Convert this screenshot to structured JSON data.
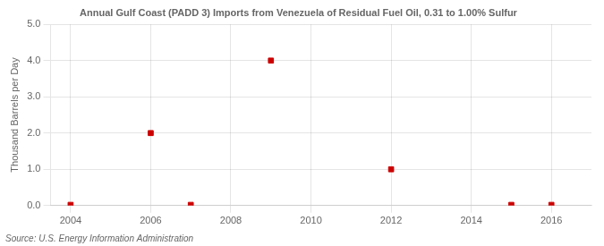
{
  "chart_data": {
    "type": "scatter",
    "title": "Annual Gulf Coast (PADD 3) Imports from Venezuela of Residual Fuel Oil, 0.31 to 1.00% Sulfur",
    "y_label": "Thousand Barrels per Day",
    "annotations": [
      "Source: U.S. Energy Information Administration"
    ],
    "x": [
      2004,
      2006,
      2007,
      2009,
      2012,
      2015,
      2016
    ],
    "values": [
      0.02,
      2.0,
      0.02,
      4.0,
      1.0,
      0.02,
      0.02
    ],
    "color": "#cc0000",
    "marker": "square",
    "xlim": [
      2003.5,
      2017.0
    ],
    "xticks": [
      2004,
      2006,
      2008,
      2010,
      2012,
      2014,
      2016
    ],
    "ylim": [
      0.0,
      5.0
    ],
    "yticks": [
      {
        "value": 0.0,
        "label": "0.0"
      },
      {
        "value": 1.0,
        "label": "1.0"
      },
      {
        "value": 2.0,
        "label": "2.0"
      },
      {
        "value": 3.0,
        "label": "3.0"
      },
      {
        "value": 4.0,
        "label": "4.0"
      },
      {
        "value": 5.0,
        "label": "5.0"
      }
    ],
    "grid": true
  }
}
